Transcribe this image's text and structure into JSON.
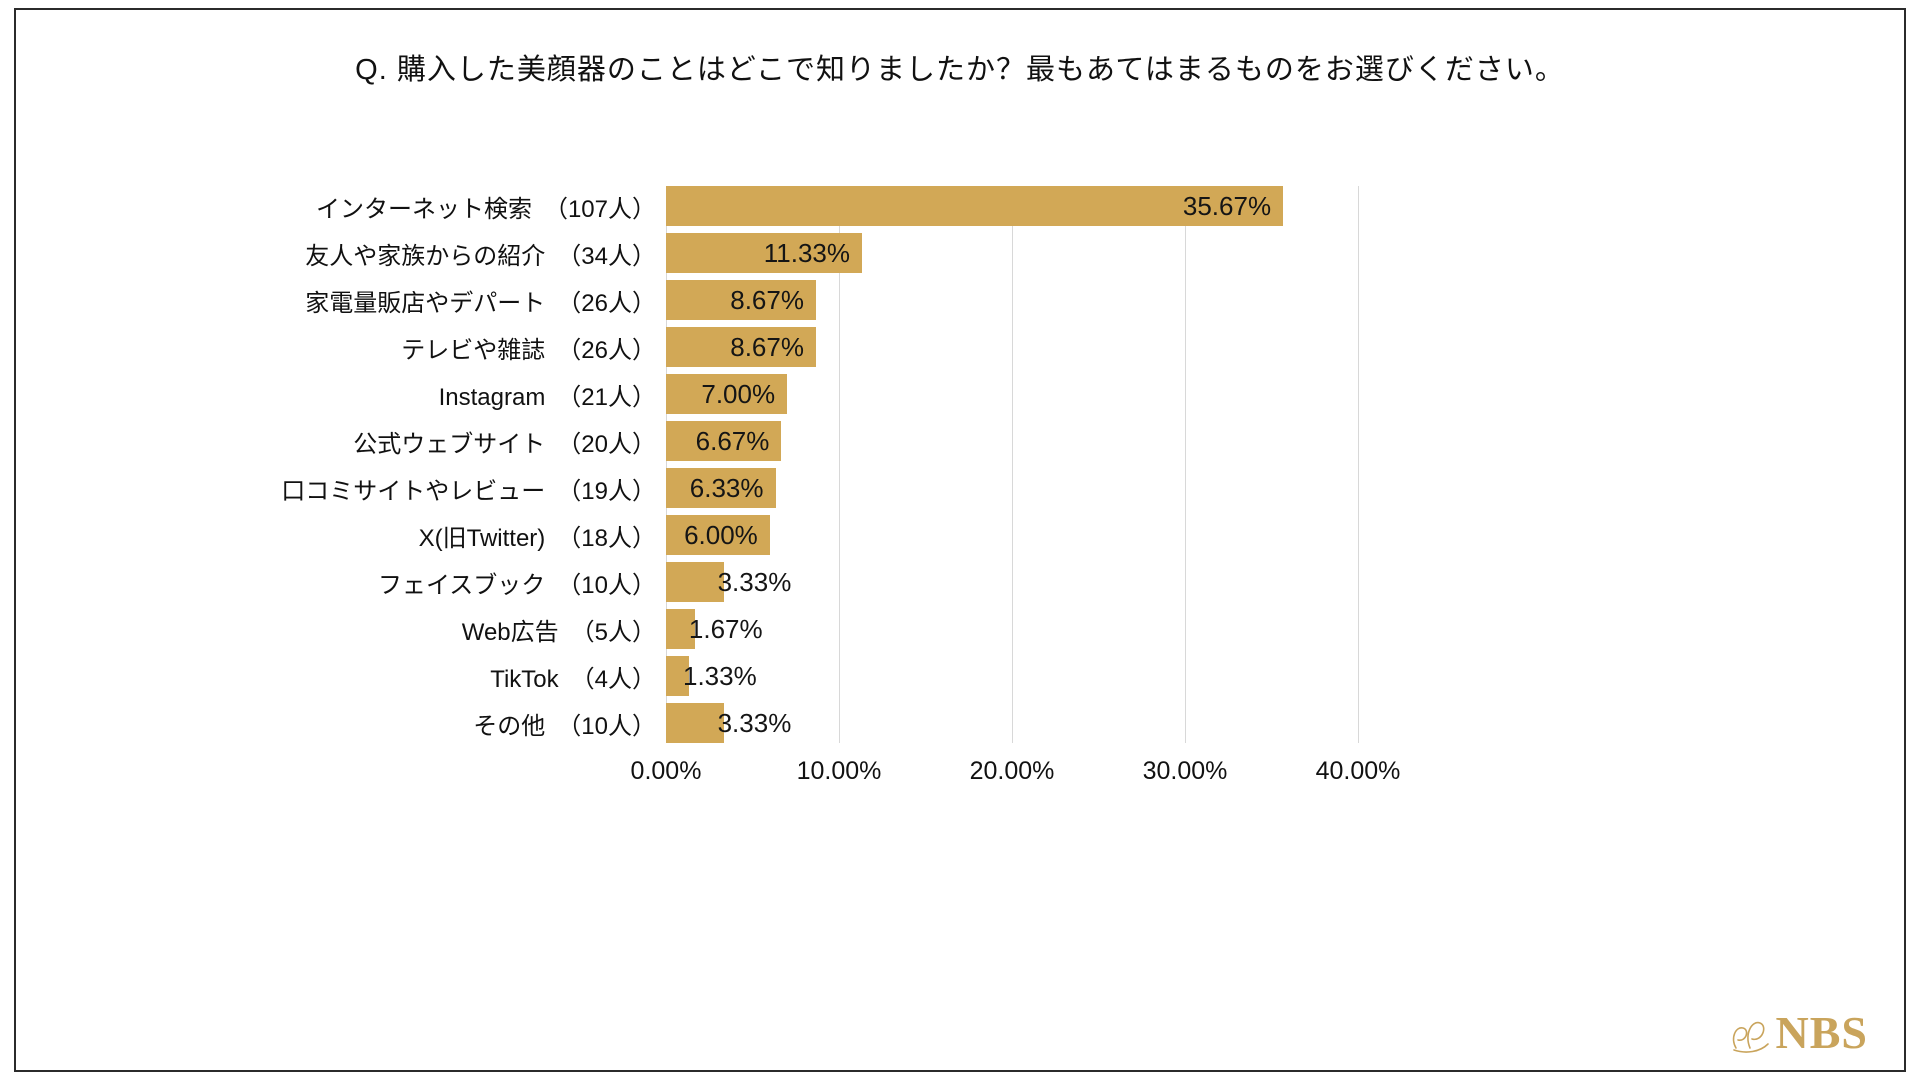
{
  "page": {
    "title": "Q. 購入した美顔器のことはどこで知りましたか？最もあてはまるものをお選びください。"
  },
  "chart_data": {
    "type": "bar",
    "orientation": "horizontal",
    "title": "Q. 購入した美顔器のことはどこで知りましたか？最もあてはまるものをお選びください。",
    "categories": [
      "インターネット検索　（107人）",
      "友人や家族からの紹介　（34人）",
      "家電量販店やデパート　（26人）",
      "テレビや雑誌　（26人）",
      "Instagram　（21人）",
      "公式ウェブサイト　（20人）",
      "口コミサイトやレビュー　（19人）",
      "X(旧Twitter)　（18人）",
      "フェイスブック　（10人）",
      "Web広告　（5人）",
      "TikTok　（4人）",
      "その他　（10人）"
    ],
    "counts": [
      107,
      34,
      26,
      26,
      21,
      20,
      19,
      18,
      10,
      5,
      4,
      10
    ],
    "values": [
      35.67,
      11.33,
      8.67,
      8.67,
      7.0,
      6.67,
      6.33,
      6.0,
      3.33,
      1.67,
      1.33,
      3.33
    ],
    "value_labels": [
      "35.67%",
      "11.33%",
      "8.67%",
      "8.67%",
      "7.00%",
      "6.67%",
      "6.33%",
      "6.00%",
      "3.33%",
      "1.67%",
      "1.33%",
      "3.33%"
    ],
    "axis_ticks": [
      0,
      10,
      20,
      30,
      40
    ],
    "axis_tick_labels": [
      "0.00%",
      "10.00%",
      "20.00%",
      "30.00%",
      "40.00%"
    ],
    "xlim": [
      0,
      40
    ],
    "bar_color": "#D2A856",
    "gridline_color": "#d8d8d8",
    "grid": true,
    "legend": false
  },
  "logo": {
    "text": "NBS",
    "color": "#C9A45C"
  }
}
